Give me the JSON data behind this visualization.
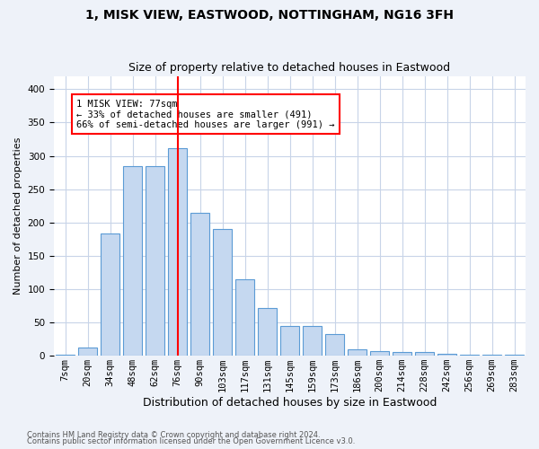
{
  "title": "1, MISK VIEW, EASTWOOD, NOTTINGHAM, NG16 3FH",
  "subtitle": "Size of property relative to detached houses in Eastwood",
  "xlabel": "Distribution of detached houses by size in Eastwood",
  "ylabel": "Number of detached properties",
  "footnote1": "Contains HM Land Registry data © Crown copyright and database right 2024.",
  "footnote2": "Contains public sector information licensed under the Open Government Licence v3.0.",
  "categories": [
    "7sqm",
    "20sqm",
    "34sqm",
    "48sqm",
    "62sqm",
    "76sqm",
    "90sqm",
    "103sqm",
    "117sqm",
    "131sqm",
    "145sqm",
    "159sqm",
    "173sqm",
    "186sqm",
    "200sqm",
    "214sqm",
    "228sqm",
    "242sqm",
    "256sqm",
    "269sqm",
    "283sqm"
  ],
  "values": [
    2,
    13,
    183,
    285,
    285,
    312,
    215,
    190,
    115,
    71,
    45,
    45,
    32,
    9,
    7,
    5,
    5,
    3,
    2,
    2,
    2
  ],
  "bar_color": "#c5d8f0",
  "bar_edge_color": "#5b9bd5",
  "bar_edge_width": 0.8,
  "property_line_x": 5,
  "property_line_color": "red",
  "annotation_text": "1 MISK VIEW: 77sqm\n← 33% of detached houses are smaller (491)\n66% of semi-detached houses are larger (991) →",
  "annotation_box_color": "white",
  "annotation_box_edge_color": "red",
  "annotation_fontsize": 7.5,
  "ylim": [
    0,
    420
  ],
  "title_fontsize": 10,
  "subtitle_fontsize": 9,
  "xlabel_fontsize": 9,
  "ylabel_fontsize": 8,
  "tick_fontsize": 7.5,
  "bg_color": "#eef2f9",
  "plot_bg_color": "white",
  "grid_color": "#c8d4e8",
  "n_bars": 21
}
